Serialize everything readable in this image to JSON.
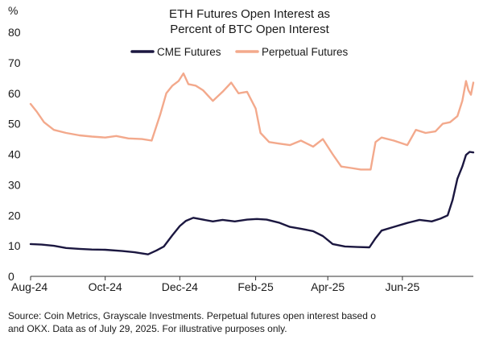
{
  "chart_data": {
    "type": "line",
    "title": "ETH Futures Open Interest as",
    "subtitle": "Percent of BTC Open Interest",
    "y_unit": "%",
    "ylim": [
      0,
      80
    ],
    "yticks": [
      0,
      10,
      20,
      30,
      40,
      50,
      60,
      70,
      80
    ],
    "x_ticks": [
      "Aug-24",
      "Oct-24",
      "Dec-24",
      "Feb-25",
      "Apr-25",
      "Jun-25"
    ],
    "x_range": [
      "2024-08-01",
      "2025-07-29"
    ],
    "grid": false,
    "legend_position": "top",
    "series": [
      {
        "name": "CME Futures",
        "color": "#1b1740",
        "points": [
          [
            "2024-08-01",
            10.6
          ],
          [
            "2024-08-10",
            10.4
          ],
          [
            "2024-08-20",
            10.0
          ],
          [
            "2024-08-30",
            9.3
          ],
          [
            "2024-09-10",
            9.0
          ],
          [
            "2024-09-20",
            8.8
          ],
          [
            "2024-10-01",
            8.7
          ],
          [
            "2024-10-15",
            8.3
          ],
          [
            "2024-10-25",
            7.9
          ],
          [
            "2024-11-05",
            7.2
          ],
          [
            "2024-11-12",
            8.5
          ],
          [
            "2024-11-18",
            9.8
          ],
          [
            "2024-11-25",
            13.5
          ],
          [
            "2024-12-01",
            16.5
          ],
          [
            "2024-12-06",
            18.2
          ],
          [
            "2024-12-12",
            19.2
          ],
          [
            "2024-12-20",
            18.6
          ],
          [
            "2024-12-28",
            18.0
          ],
          [
            "2025-01-05",
            18.5
          ],
          [
            "2025-01-15",
            18.0
          ],
          [
            "2025-01-25",
            18.6
          ],
          [
            "2025-02-02",
            18.8
          ],
          [
            "2025-02-10",
            18.6
          ],
          [
            "2025-02-20",
            17.6
          ],
          [
            "2025-03-01",
            16.2
          ],
          [
            "2025-03-10",
            15.6
          ],
          [
            "2025-03-20",
            14.8
          ],
          [
            "2025-03-28",
            13.2
          ],
          [
            "2025-04-05",
            10.6
          ],
          [
            "2025-04-15",
            9.8
          ],
          [
            "2025-04-25",
            9.6
          ],
          [
            "2025-05-05",
            9.5
          ],
          [
            "2025-05-10",
            12.5
          ],
          [
            "2025-05-15",
            15.0
          ],
          [
            "2025-05-25",
            16.2
          ],
          [
            "2025-06-05",
            17.5
          ],
          [
            "2025-06-15",
            18.5
          ],
          [
            "2025-06-25",
            18.0
          ],
          [
            "2025-07-02",
            18.9
          ],
          [
            "2025-07-08",
            20.0
          ],
          [
            "2025-07-12",
            25.0
          ],
          [
            "2025-07-16",
            32.0
          ],
          [
            "2025-07-20",
            36.0
          ],
          [
            "2025-07-23",
            39.8
          ],
          [
            "2025-07-26",
            40.8
          ],
          [
            "2025-07-29",
            40.6
          ]
        ]
      },
      {
        "name": "Perpetual Futures",
        "color": "#f3a98c",
        "points": [
          [
            "2024-08-01",
            56.5
          ],
          [
            "2024-08-06",
            54.0
          ],
          [
            "2024-08-12",
            50.5
          ],
          [
            "2024-08-20",
            48.0
          ],
          [
            "2024-08-30",
            47.0
          ],
          [
            "2024-09-10",
            46.2
          ],
          [
            "2024-09-20",
            45.8
          ],
          [
            "2024-10-01",
            45.5
          ],
          [
            "2024-10-10",
            46.0
          ],
          [
            "2024-10-20",
            45.2
          ],
          [
            "2024-10-31",
            45.0
          ],
          [
            "2024-11-08",
            44.5
          ],
          [
            "2024-11-15",
            53.0
          ],
          [
            "2024-11-20",
            60.0
          ],
          [
            "2024-11-25",
            62.5
          ],
          [
            "2024-11-30",
            64.0
          ],
          [
            "2024-12-04",
            66.5
          ],
          [
            "2024-12-08",
            63.0
          ],
          [
            "2024-12-14",
            62.5
          ],
          [
            "2024-12-20",
            61.0
          ],
          [
            "2024-12-28",
            57.5
          ],
          [
            "2025-01-05",
            60.5
          ],
          [
            "2025-01-12",
            63.5
          ],
          [
            "2025-01-18",
            60.0
          ],
          [
            "2025-01-25",
            60.5
          ],
          [
            "2025-02-01",
            55.0
          ],
          [
            "2025-02-05",
            47.0
          ],
          [
            "2025-02-12",
            44.0
          ],
          [
            "2025-02-20",
            43.5
          ],
          [
            "2025-03-01",
            43.0
          ],
          [
            "2025-03-10",
            44.5
          ],
          [
            "2025-03-20",
            42.5
          ],
          [
            "2025-03-28",
            45.0
          ],
          [
            "2025-04-05",
            40.0
          ],
          [
            "2025-04-12",
            36.0
          ],
          [
            "2025-04-20",
            35.5
          ],
          [
            "2025-04-28",
            35.0
          ],
          [
            "2025-05-06",
            35.0
          ],
          [
            "2025-05-10",
            44.0
          ],
          [
            "2025-05-15",
            45.5
          ],
          [
            "2025-05-25",
            44.5
          ],
          [
            "2025-06-05",
            43.0
          ],
          [
            "2025-06-12",
            48.0
          ],
          [
            "2025-06-20",
            47.0
          ],
          [
            "2025-06-28",
            47.5
          ],
          [
            "2025-07-04",
            50.0
          ],
          [
            "2025-07-10",
            50.5
          ],
          [
            "2025-07-16",
            52.5
          ],
          [
            "2025-07-20",
            57.5
          ],
          [
            "2025-07-23",
            64.0
          ],
          [
            "2025-07-25",
            61.0
          ],
          [
            "2025-07-27",
            59.5
          ],
          [
            "2025-07-29",
            63.5
          ]
        ]
      }
    ],
    "source": "Source: Coin Metrics, Grayscale Investments. Perpetual futures open interest based o",
    "source_line2": "and OKX. Data as of July 29, 2025. For illustrative purposes only."
  }
}
